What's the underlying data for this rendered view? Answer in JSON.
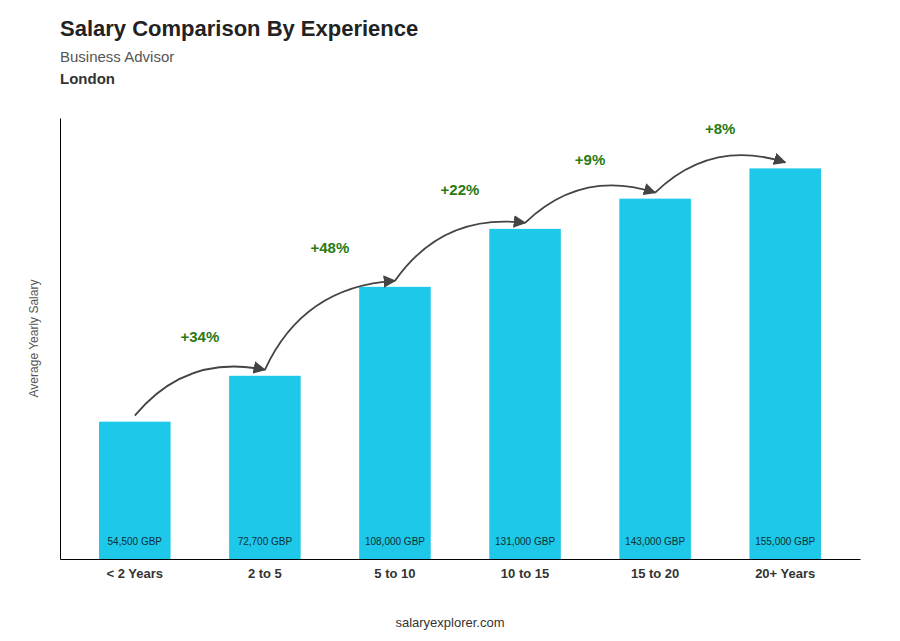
{
  "chart_data": {
    "type": "bar",
    "title": "Salary Comparison By Experience",
    "subtitle": [
      "Business Advisor",
      "London"
    ],
    "categories": [
      "< 2 Years",
      "2 to 5",
      "5 to 10",
      "10 to 15",
      "15 to 20",
      "20+ Years"
    ],
    "values": [
      54500,
      72700,
      108000,
      131000,
      143000,
      155000
    ],
    "value_labels": [
      "54,500 GBP",
      "72,700 GBP",
      "108,000 GBP",
      "131,000 GBP",
      "143,000 GBP",
      "155,000 GBP"
    ],
    "data_labels": true,
    "color": "#1ec8e8",
    "ylabel": "Average Yearly Salary",
    "ylim": [
      0,
      175000
    ],
    "tick_labels": "x",
    "grid": false,
    "annotations": [
      "+34%",
      "+48%",
      "+22%",
      "+9%",
      "+8%"
    ],
    "footer": "salaryexplorer.com"
  }
}
